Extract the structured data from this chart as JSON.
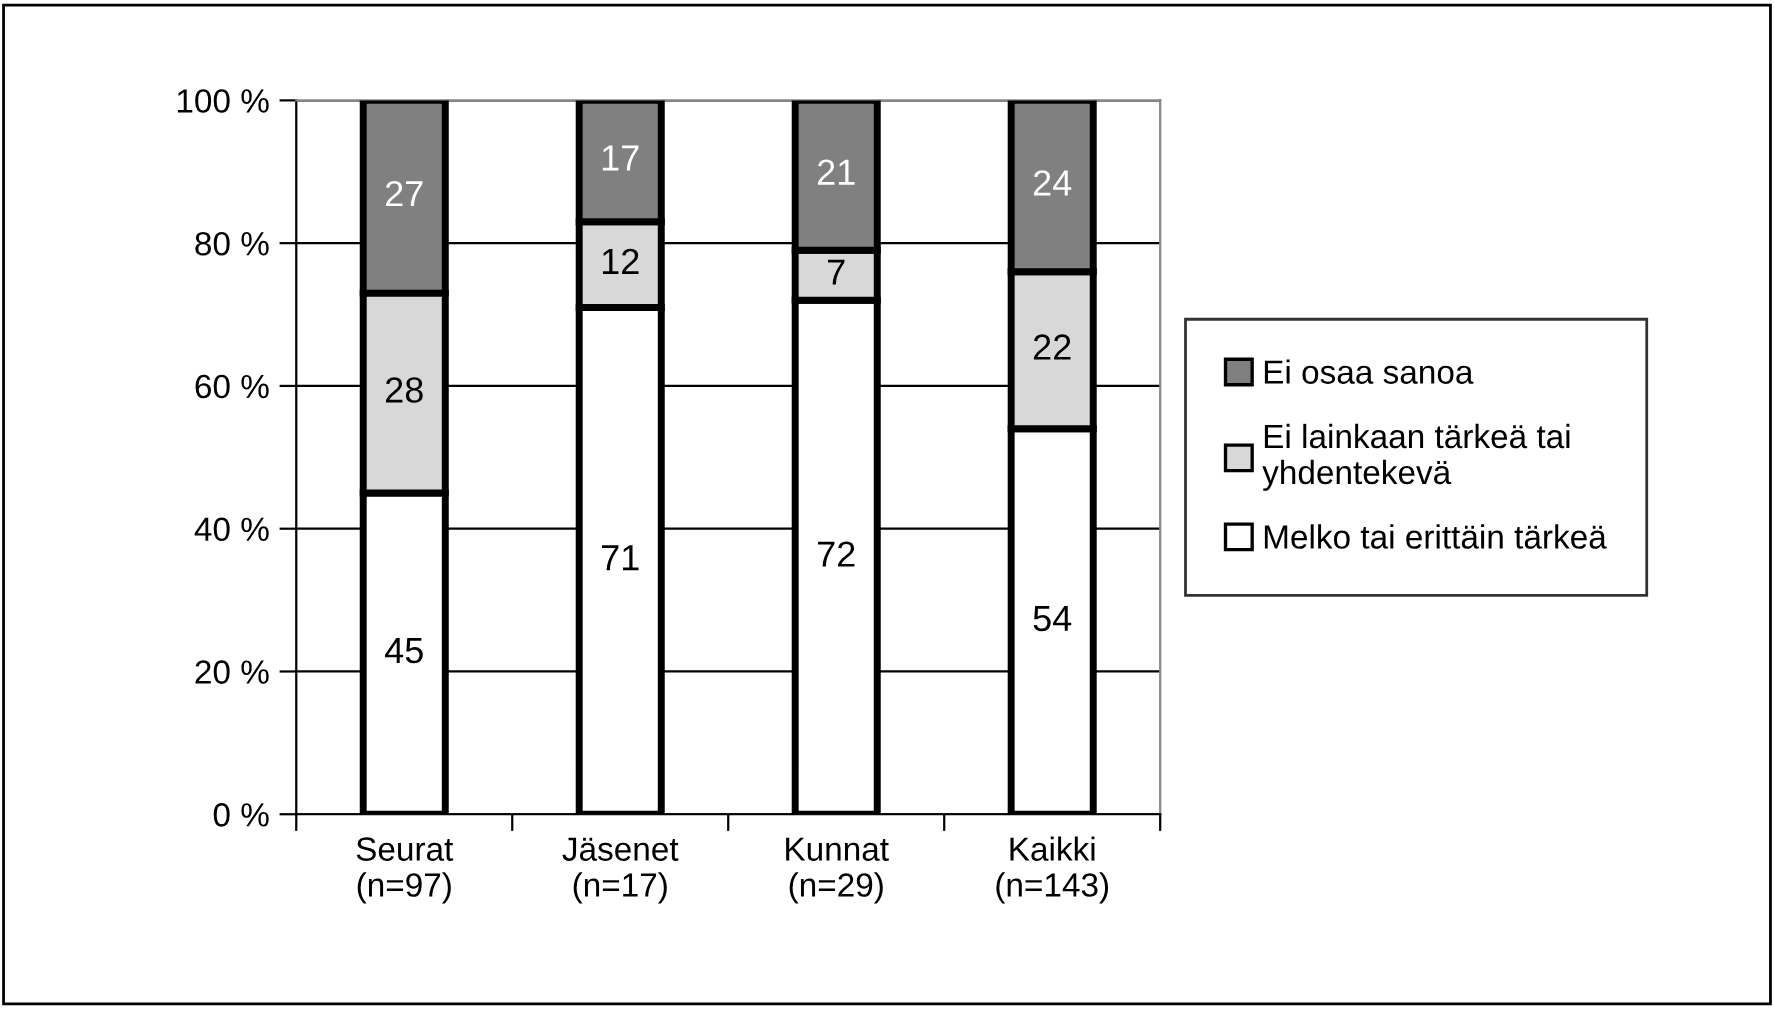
{
  "chart_data": {
    "type": "bar",
    "stacked": true,
    "categories": [
      "Seurat\n(n=97)",
      "Jäsenet\n(n=17)",
      "Kunnat\n(n=29)",
      "Kaikki\n(n=143)"
    ],
    "series": [
      {
        "name": "Melko tai erittäin tärkeä",
        "color": "#ffffff",
        "values": [
          45,
          71,
          72,
          54
        ]
      },
      {
        "name": "Ei lainkaan tärkeä tai\nyhdentekevä",
        "color": "#d8d8d8",
        "values": [
          28,
          12,
          7,
          22
        ]
      },
      {
        "name": "Ei osaa sanoa",
        "color": "#808080",
        "values": [
          27,
          17,
          21,
          24
        ]
      }
    ],
    "ylim": [
      0,
      100
    ],
    "yticks": [
      {
        "value": 0,
        "label": "0 %"
      },
      {
        "value": 20,
        "label": "20 %"
      },
      {
        "value": 40,
        "label": "40 %"
      },
      {
        "value": 60,
        "label": "60 %"
      },
      {
        "value": 80,
        "label": "80 %"
      },
      {
        "value": 100,
        "label": "100 %"
      }
    ],
    "grid": "y",
    "legend": "right",
    "data_labels": true
  }
}
